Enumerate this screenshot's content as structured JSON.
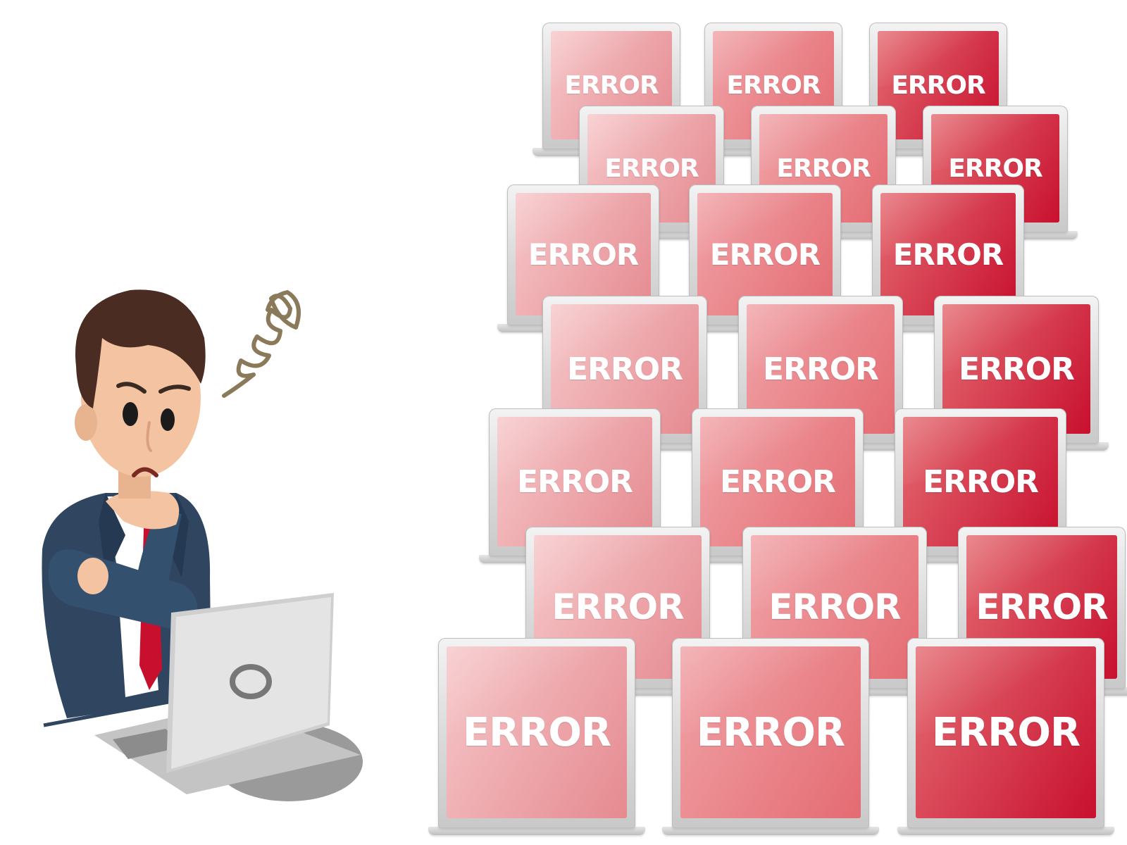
{
  "scene": {
    "label_text": "ERROR",
    "person": {
      "expression": "worried",
      "icon_confusion": "swirl-icon",
      "suit_color": "#2f4560",
      "tie_color": "#c8102e",
      "hair_color": "#4a2c22",
      "skin_color": "#f4c4a2"
    },
    "laptop_color": "#d0d0d0",
    "error_colors": {
      "light": "#f6c7c9",
      "mid": "#e46b72",
      "dark": "#c8102e"
    },
    "error_screen_count": 22
  }
}
